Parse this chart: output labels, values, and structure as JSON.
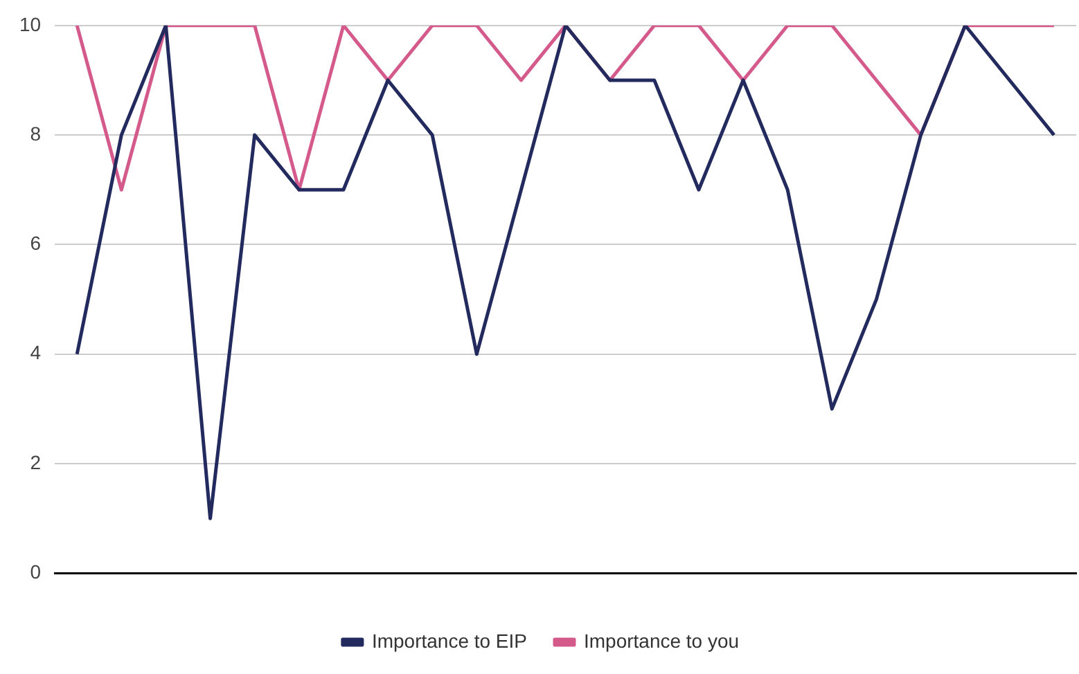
{
  "chart_data": {
    "type": "line",
    "categories": [
      null,
      null,
      null,
      null,
      null,
      null,
      null,
      null,
      null,
      null,
      null,
      null,
      null,
      null,
      null,
      null,
      null,
      null,
      null,
      null,
      null,
      null,
      null
    ],
    "series": [
      {
        "name": "Importance to EIP",
        "color": "#222a5e",
        "values": [
          4,
          8,
          10,
          1,
          8,
          7,
          7,
          9,
          8,
          4,
          7,
          10,
          9,
          9,
          7,
          9,
          7,
          3,
          5,
          8,
          10,
          9,
          8
        ]
      },
      {
        "name": "Importance to you",
        "color": "#d55a8c",
        "values": [
          10,
          7,
          10,
          10,
          10,
          7,
          10,
          9,
          10,
          10,
          9,
          10,
          9,
          10,
          10,
          9,
          10,
          10,
          9,
          8,
          10,
          10,
          10
        ]
      }
    ],
    "ylim": [
      0,
      10
    ],
    "yticks": [
      0,
      2,
      4,
      6,
      8,
      10
    ],
    "grid": "y",
    "legend": "bottom",
    "marker": "none"
  }
}
